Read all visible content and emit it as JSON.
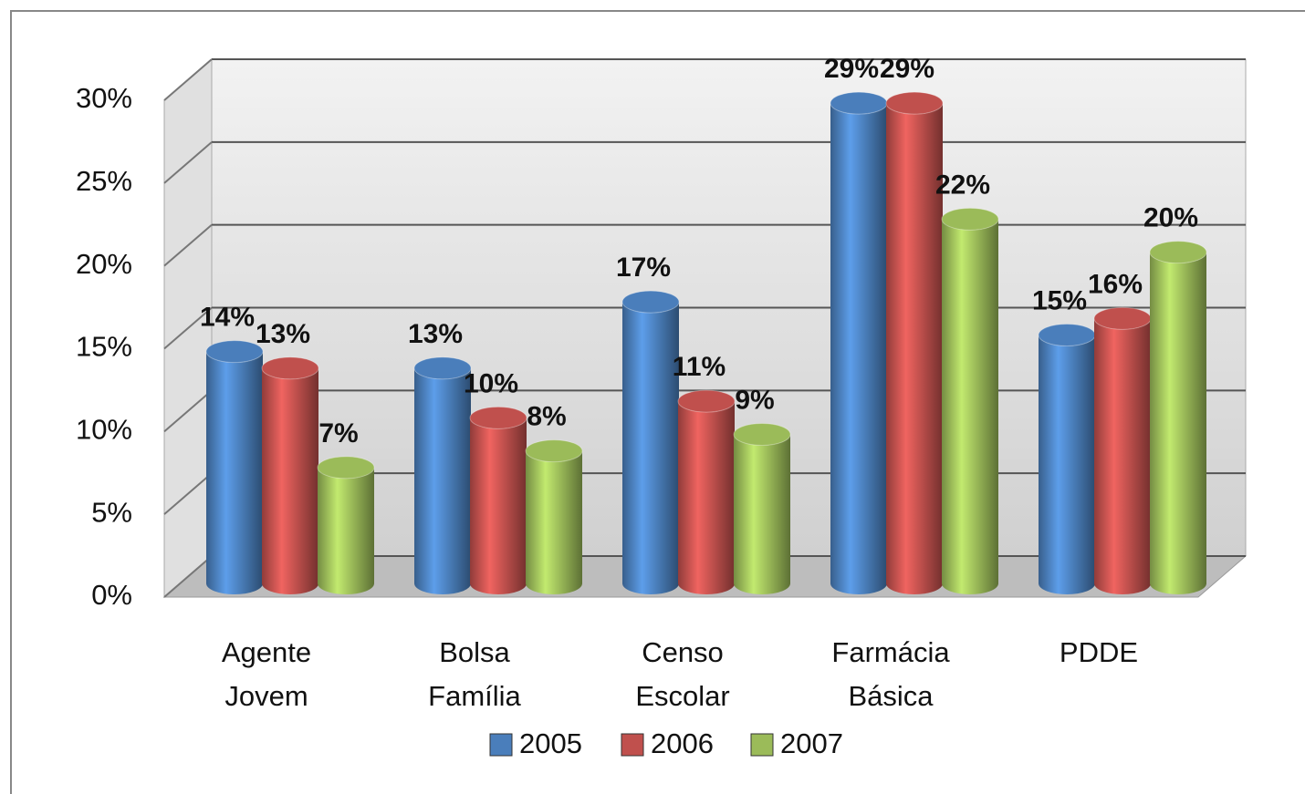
{
  "chart_data": {
    "type": "bar3d",
    "categories": [
      "Agente Jovem",
      "Bolsa Família",
      "Censo Escolar",
      "Farmácia Básica",
      "PDDE"
    ],
    "series": [
      {
        "name": "2005",
        "color": "#4a7ebb",
        "values": [
          14,
          13,
          17,
          29,
          15
        ],
        "value_labels": [
          "14%",
          "13%",
          "17%",
          "29%",
          "15%"
        ]
      },
      {
        "name": "2006",
        "color": "#c0504d",
        "values": [
          13,
          10,
          11,
          29,
          16
        ],
        "value_labels": [
          "13%",
          "10%",
          "11%",
          "29%",
          "16%"
        ]
      },
      {
        "name": "2007",
        "color": "#9bbb59",
        "values": [
          7,
          8,
          9,
          22,
          20
        ],
        "value_labels": [
          "7%",
          "8%",
          "9%",
          "22%",
          "20%"
        ]
      }
    ],
    "ylim": [
      0,
      30
    ],
    "yticks": [
      {
        "value": 0,
        "label": "0%"
      },
      {
        "value": 5,
        "label": "5%"
      },
      {
        "value": 10,
        "label": "10%"
      },
      {
        "value": 15,
        "label": "15%"
      },
      {
        "value": 20,
        "label": "20%"
      },
      {
        "value": 25,
        "label": "25%"
      },
      {
        "value": 30,
        "label": "30%"
      }
    ],
    "grid": true,
    "legend": "bottom"
  }
}
